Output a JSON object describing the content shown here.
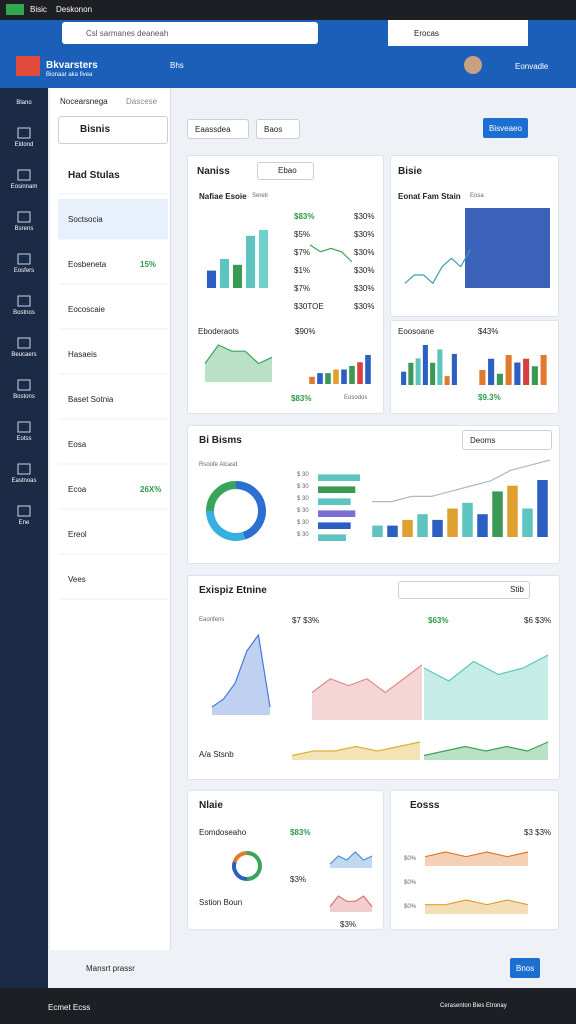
{
  "header": {
    "brand": "Bisic",
    "tab": "Deskonon",
    "search": "Csl sarmanes deaneah",
    "button": "Erocas",
    "app": "Bkvarsters",
    "app_sub": "Bionaar aka fivea",
    "nav": "Bhs",
    "user": "Eonvadle"
  },
  "nav": [
    "Blano",
    "Eldond",
    "Eosinnam",
    "Bsrens",
    "Eosfers",
    "Bostnos",
    "Beucaers",
    "Bostons",
    "Eotss",
    "Eastnoas",
    "Ene"
  ],
  "side": {
    "title": "Nocearsnega",
    "tab": "Dascese",
    "search": "Bisnis",
    "items": [
      "Had Stulas",
      "Soctsocia",
      "Eosbeneta",
      "Eocoscaie",
      "Hasaeis",
      "Baset Sotnia",
      "Eosa",
      "Ecoa",
      "Ereol",
      "Vees"
    ],
    "badges": {
      "eosbeneta": "15%",
      "ecoa": "26X%"
    },
    "footer": "Mansrt prassr"
  },
  "toolbar": {
    "filter": "Eaassdea",
    "range": "Baos",
    "button": "Bisveaeo"
  },
  "card1": {
    "title": "Naniss",
    "dropdown": "Ebao",
    "subtitle": "Nafiae Esoie",
    "note": "Sereti",
    "stats": [
      "$83%",
      "$5%",
      "$7%",
      "$1%",
      "$7%",
      "$30TOE"
    ],
    "stats2": [
      "$30%",
      "$30%",
      "$30%",
      "$30%",
      "$30%",
      "$30%"
    ],
    "lower_title": "Eboderaots",
    "lower_stat": "$90%",
    "lower_foot": "$83%",
    "lower_foot2": "Eosodos"
  },
  "card2": {
    "title": "Bisie",
    "subtitle": "Eonat Fam Stain",
    "note": "Eosa",
    "lower_title": "Eoosoane",
    "lower_stat": "$43%",
    "lower_foot": "$9.3%"
  },
  "card3": {
    "title": "Bi Bisms",
    "dropdown": "Deoms",
    "subtitle": "Rsoofe Alcasd",
    "hlabels": [
      "$ 30",
      "$ 30",
      "$ 30",
      "$ 30",
      "$ 30",
      "$ 30"
    ]
  },
  "card4": {
    "title": "Exispiz Etnine",
    "dropdown": "Stib",
    "subtitle": "Eaonfens",
    "stat1": "$7 $3%",
    "stat2": "$63%",
    "stat3": "$6 $3%",
    "foot": "A/a Stsnb"
  },
  "card5": {
    "title": "Nlaie",
    "label": "Eomdoseaho",
    "stat": "$83%",
    "sub": "Sstion Boun",
    "s1": "$3%",
    "s2": "$3%"
  },
  "card6": {
    "title": "Eosss",
    "stat": "$3 $3%",
    "rows": [
      "$0%",
      "$0%",
      "$0%"
    ]
  },
  "footer": {
    "action": "Bnos",
    "left": "Ecmet Ecss",
    "right": "Cerasenton Bies Etronay"
  },
  "charts": {
    "c1_bars": {
      "values": [
        3,
        5,
        4,
        9,
        10
      ],
      "colors": [
        "#2b5fc1",
        "#5ec4c0",
        "#3a9a55",
        "#5ec4c0",
        "#6fd0cc"
      ]
    },
    "c1_line": {
      "values": [
        8,
        6,
        7,
        6,
        3
      ],
      "color": "#3aa55a"
    },
    "c1_area": {
      "values": [
        3,
        6,
        5,
        5,
        3,
        4
      ],
      "color": "#3aa55a"
    },
    "c1_bars2": {
      "values": [
        2,
        3,
        3,
        4,
        4,
        5,
        6,
        8
      ],
      "colors": [
        "#e07a2e",
        "#2b5fc1",
        "#3a9a55",
        "#e0a030",
        "#2b5fc1",
        "#3a9a55",
        "#d94040",
        "#2b5fc1"
      ]
    },
    "c2_line": {
      "values": [
        2,
        3,
        3,
        2,
        4,
        5,
        4,
        6
      ],
      "color": "#3aa0b0"
    },
    "c2_bars": {
      "values": [
        3,
        5,
        6,
        9,
        5,
        8,
        2,
        7
      ],
      "colors": [
        "#2b5fc1",
        "#3a9a55",
        "#5ec4c0",
        "#2b5fc1",
        "#3a9a55",
        "#5ec4c0",
        "#e07a2e",
        "#2b5fc1"
      ]
    },
    "c2_bars2": {
      "values": [
        4,
        7,
        3,
        8,
        6,
        7,
        5,
        8
      ],
      "colors": [
        "#e07a2e",
        "#2b5fc1",
        "#3a9a55",
        "#e07a2e",
        "#2b5fc1",
        "#d94040",
        "#3a9a55",
        "#e07a2e"
      ]
    },
    "c3_donut": {
      "values": [
        45,
        30,
        25
      ],
      "colors": [
        "#2b6fd0",
        "#36b0e0",
        "#3aa55a"
      ]
    },
    "c3_hbars": {
      "values": [
        9,
        8,
        7,
        8,
        7,
        6
      ],
      "colors": [
        "#5ec4c0",
        "#3a9a55",
        "#5ec4c0",
        "#7b6fd0",
        "#2b5fc1",
        "#5ec4c0"
      ]
    },
    "c3_bars": {
      "values": [
        2,
        2,
        3,
        4,
        3,
        5,
        6,
        4,
        8,
        9,
        5,
        10
      ],
      "colors": [
        "#5ec4c0",
        "#2b5fc1",
        "#e0a030",
        "#5ec4c0",
        "#2b5fc1",
        "#e0a030",
        "#5ec4c0",
        "#2b5fc1",
        "#3a9a55",
        "#e0a030",
        "#5ec4c0",
        "#2b5fc1"
      ]
    },
    "c3_line": {
      "values": [
        2,
        2,
        3,
        3,
        4,
        5,
        6,
        8,
        9,
        10
      ],
      "color": "#aab8c8"
    },
    "c4_area1": {
      "values": [
        1,
        2,
        4,
        8,
        10,
        1
      ],
      "color": "#4a78d8"
    },
    "c4_area2": {
      "values": [
        4,
        6,
        5,
        6,
        4,
        6,
        8
      ],
      "color": "#e08a8a"
    },
    "c4_area3": {
      "values": [
        8,
        6,
        9,
        7,
        8,
        10
      ],
      "color": "#5cc8b8"
    },
    "c4_mini1": {
      "values": [
        1,
        2,
        2,
        3,
        2,
        3,
        4
      ],
      "color": "#e0b030"
    },
    "c4_mini2": {
      "values": [
        1,
        2,
        3,
        2,
        3,
        2,
        4
      ],
      "color": "#3aa55a"
    },
    "c5_donut": {
      "values": [
        50,
        30,
        20
      ],
      "colors": [
        "#3aa55a",
        "#2b5fc1",
        "#e07a2e"
      ]
    },
    "c5_area1": {
      "values": [
        1,
        3,
        2,
        4,
        2,
        3
      ],
      "color": "#4a90d8"
    },
    "c5_area2": {
      "values": [
        1,
        3,
        2,
        2,
        3,
        1
      ],
      "color": "#d97070"
    },
    "c6_area1": {
      "values": [
        2,
        3,
        2,
        3,
        2,
        3
      ],
      "color": "#e07a2e"
    },
    "c6_area2": {
      "values": [
        2,
        2,
        3,
        2,
        3,
        2
      ],
      "color": "#e0a030"
    }
  }
}
